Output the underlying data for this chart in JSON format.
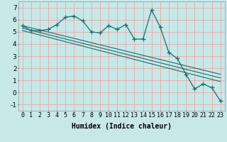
{
  "title": "",
  "xlabel": "Humidex (Indice chaleur)",
  "ylabel": "",
  "bg_color": "#c8e8e8",
  "grid_color": "#e8a8a8",
  "line_color": "#1a6b6b",
  "xlim": [
    -0.5,
    23.5
  ],
  "ylim": [
    -1.5,
    7.5
  ],
  "xticks": [
    0,
    1,
    2,
    3,
    4,
    5,
    6,
    7,
    8,
    9,
    10,
    11,
    12,
    13,
    14,
    15,
    16,
    17,
    18,
    19,
    20,
    21,
    22,
    23
  ],
  "yticks": [
    -1,
    0,
    1,
    2,
    3,
    4,
    5,
    6,
    7
  ],
  "data_x": [
    0,
    1,
    2,
    3,
    4,
    5,
    6,
    7,
    8,
    9,
    10,
    11,
    12,
    13,
    14,
    15,
    16,
    17,
    18,
    19,
    20,
    21,
    22,
    23
  ],
  "data_y": [
    5.5,
    5.1,
    5.1,
    5.2,
    5.6,
    6.2,
    6.3,
    5.9,
    5.0,
    4.9,
    5.5,
    5.2,
    5.6,
    4.4,
    4.4,
    6.8,
    5.4,
    3.3,
    2.8,
    1.5,
    0.3,
    0.7,
    0.4,
    -0.7
  ],
  "trend1_x": [
    0,
    23
  ],
  "trend1_y": [
    5.5,
    1.5
  ],
  "trend2_x": [
    0,
    23
  ],
  "trend2_y": [
    5.3,
    1.2
  ],
  "trend3_x": [
    0,
    23
  ],
  "trend3_y": [
    5.1,
    0.9
  ],
  "marker_size": 4,
  "font_size": 6.5
}
